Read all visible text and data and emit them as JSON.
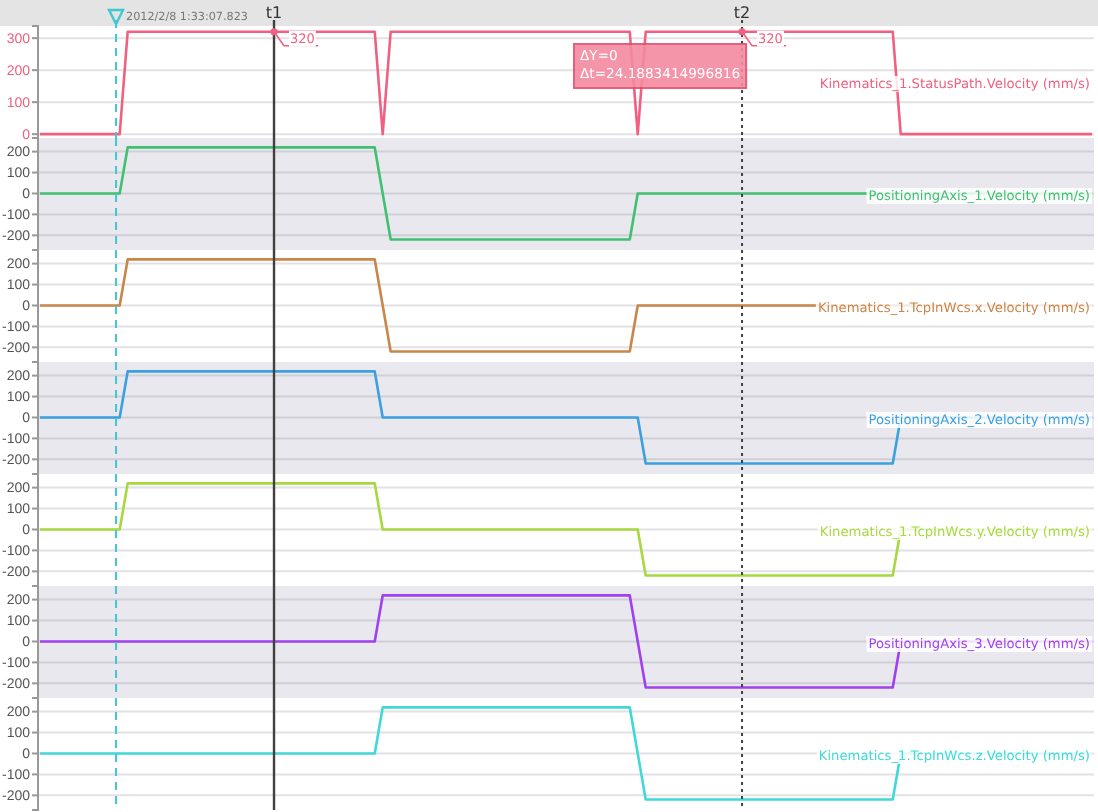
{
  "chart_data": [
    {
      "type": "line",
      "categories": [
        null,
        null,
        null,
        null,
        null,
        null,
        null,
        null,
        null,
        null,
        null,
        null,
        null,
        null,
        null,
        null,
        null,
        null,
        null,
        null,
        null,
        null,
        null,
        null,
        null,
        null,
        null,
        null,
        null,
        null,
        null,
        null,
        null,
        null,
        null,
        null,
        null,
        null,
        null,
        null,
        null,
        null,
        null,
        null,
        null,
        null,
        null,
        null,
        null,
        null,
        null,
        null,
        null,
        null,
        null,
        null,
        null,
        null,
        null,
        null,
        null,
        null,
        null,
        null,
        null,
        null,
        null,
        null,
        null,
        null,
        null,
        null,
        null,
        null,
        null,
        null,
        null,
        null,
        null,
        null,
        null,
        null,
        null,
        null,
        null,
        null,
        null,
        null,
        null,
        null,
        null,
        null,
        null,
        null,
        null,
        null,
        null,
        null,
        null,
        null,
        null,
        null,
        null,
        null,
        null,
        null,
        null,
        null,
        null,
        null,
        null,
        null,
        null,
        null,
        null,
        null,
        null,
        null,
        null,
        null,
        null,
        null,
        null,
        null,
        null,
        null,
        null,
        null,
        null,
        null,
        null,
        null,
        null
      ],
      "series": [
        {
          "name": "Kinematics_1.StatusPath.Velocity (mm/s)",
          "color": "#f06080",
          "values": [
            0,
            0,
            0,
            0,
            0,
            0,
            0,
            0,
            0,
            0,
            0,
            320,
            320,
            320,
            320,
            320,
            320,
            320,
            320,
            320,
            320,
            320,
            320,
            320,
            320,
            320,
            320,
            320,
            320,
            320,
            320,
            320,
            320,
            320,
            320,
            320,
            320,
            320,
            320,
            320,
            320,
            320,
            320,
            0,
            320,
            320,
            320,
            320,
            320,
            320,
            320,
            320,
            320,
            320,
            320,
            320,
            320,
            320,
            320,
            320,
            320,
            320,
            320,
            320,
            320,
            320,
            320,
            320,
            320,
            320,
            320,
            320,
            320,
            320,
            320,
            0,
            320,
            320,
            320,
            320,
            320,
            320,
            320,
            320,
            320,
            320,
            320,
            320,
            320,
            320,
            320,
            320,
            320,
            320,
            320,
            320,
            320,
            320,
            320,
            320,
            320,
            320,
            320,
            320,
            320,
            320,
            320,
            320,
            0,
            0,
            0,
            0,
            0,
            0,
            0,
            0,
            0,
            0,
            0,
            0,
            0,
            0,
            0,
            0,
            0,
            0,
            0,
            0,
            0,
            0,
            0,
            0,
            0
          ]
        }
      ],
      "ylim": [
        -12,
        338
      ],
      "yticks": [
        0,
        100,
        200,
        300
      ],
      "tick_labels": "y",
      "grid": "y",
      "annotations": [
        "2012/2/8 1:33:07.823",
        "ΔY=0",
        "Δt=24.1883414996816",
        "t1",
        "t2",
        {
          "text": "320",
          "y": 320
        },
        {
          "text": "320",
          "y": 320
        }
      ]
    },
    {
      "type": "line",
      "categories": [
        null,
        null,
        null,
        null,
        null,
        null,
        null,
        null,
        null,
        null,
        null,
        null,
        null,
        null,
        null,
        null,
        null,
        null,
        null,
        null,
        null,
        null,
        null,
        null,
        null,
        null,
        null,
        null,
        null,
        null,
        null,
        null,
        null,
        null,
        null,
        null,
        null,
        null,
        null,
        null,
        null,
        null,
        null,
        null,
        null,
        null,
        null,
        null,
        null,
        null,
        null,
        null,
        null,
        null,
        null,
        null,
        null,
        null,
        null,
        null,
        null,
        null,
        null,
        null,
        null,
        null,
        null,
        null,
        null,
        null,
        null,
        null,
        null,
        null,
        null,
        null,
        null,
        null,
        null,
        null,
        null,
        null,
        null,
        null,
        null,
        null,
        null,
        null,
        null,
        null,
        null,
        null,
        null,
        null,
        null,
        null,
        null,
        null,
        null,
        null,
        null,
        null,
        null,
        null,
        null,
        null,
        null,
        null,
        null,
        null,
        null,
        null,
        null,
        null,
        null,
        null,
        null,
        null,
        null,
        null,
        null,
        null,
        null,
        null,
        null,
        null,
        null,
        null,
        null,
        null,
        null,
        null,
        null
      ],
      "series": [
        {
          "name": "PositioningAxis_1.Velocity (mm/s)",
          "color": "#40c070",
          "values": [
            0,
            0,
            0,
            0,
            0,
            0,
            0,
            0,
            0,
            0,
            0,
            220,
            220,
            220,
            220,
            220,
            220,
            220,
            220,
            220,
            220,
            220,
            220,
            220,
            220,
            220,
            220,
            220,
            220,
            220,
            220,
            220,
            220,
            220,
            220,
            220,
            220,
            220,
            220,
            220,
            220,
            220,
            220,
            0,
            -220,
            -220,
            -220,
            -220,
            -220,
            -220,
            -220,
            -220,
            -220,
            -220,
            -220,
            -220,
            -220,
            -220,
            -220,
            -220,
            -220,
            -220,
            -220,
            -220,
            -220,
            -220,
            -220,
            -220,
            -220,
            -220,
            -220,
            -220,
            -220,
            -220,
            -220,
            0,
            0,
            0,
            0,
            0,
            0,
            0,
            0,
            0,
            0,
            0,
            0,
            0,
            0,
            0,
            0,
            0,
            0,
            0,
            0,
            0,
            0,
            0,
            0,
            0,
            0,
            0,
            0,
            0,
            0,
            0,
            0,
            0,
            0,
            0,
            0,
            0,
            0,
            0,
            0,
            0,
            0,
            0,
            0,
            0,
            0,
            0,
            0,
            0,
            0,
            0,
            0,
            0,
            0,
            0,
            0,
            0,
            0
          ]
        }
      ],
      "ylim": [
        -270,
        265
      ],
      "yticks": [
        -200,
        -100,
        0,
        100,
        200
      ],
      "tick_labels": "y",
      "grid": "y"
    },
    {
      "type": "line",
      "categories": [
        null,
        null,
        null,
        null,
        null,
        null,
        null,
        null,
        null,
        null,
        null,
        null,
        null,
        null,
        null,
        null,
        null,
        null,
        null,
        null,
        null,
        null,
        null,
        null,
        null,
        null,
        null,
        null,
        null,
        null,
        null,
        null,
        null,
        null,
        null,
        null,
        null,
        null,
        null,
        null,
        null,
        null,
        null,
        null,
        null,
        null,
        null,
        null,
        null,
        null,
        null,
        null,
        null,
        null,
        null,
        null,
        null,
        null,
        null,
        null,
        null,
        null,
        null,
        null,
        null,
        null,
        null,
        null,
        null,
        null,
        null,
        null,
        null,
        null,
        null,
        null,
        null,
        null,
        null,
        null,
        null,
        null,
        null,
        null,
        null,
        null,
        null,
        null,
        null,
        null,
        null,
        null,
        null,
        null,
        null,
        null,
        null,
        null,
        null,
        null,
        null,
        null,
        null,
        null,
        null,
        null,
        null,
        null,
        null,
        null,
        null,
        null,
        null,
        null,
        null,
        null,
        null,
        null,
        null,
        null,
        null,
        null,
        null,
        null,
        null,
        null,
        null,
        null,
        null,
        null,
        null,
        null,
        null
      ],
      "series": [
        {
          "name": "Kinematics_1.TcpInWcs.x.Velocity (mm/s)",
          "color": "#c8864a",
          "values": [
            0,
            0,
            0,
            0,
            0,
            0,
            0,
            0,
            0,
            0,
            0,
            220,
            220,
            220,
            220,
            220,
            220,
            220,
            220,
            220,
            220,
            220,
            220,
            220,
            220,
            220,
            220,
            220,
            220,
            220,
            220,
            220,
            220,
            220,
            220,
            220,
            220,
            220,
            220,
            220,
            220,
            220,
            220,
            0,
            -220,
            -220,
            -220,
            -220,
            -220,
            -220,
            -220,
            -220,
            -220,
            -220,
            -220,
            -220,
            -220,
            -220,
            -220,
            -220,
            -220,
            -220,
            -220,
            -220,
            -220,
            -220,
            -220,
            -220,
            -220,
            -220,
            -220,
            -220,
            -220,
            -220,
            -220,
            0,
            0,
            0,
            0,
            0,
            0,
            0,
            0,
            0,
            0,
            0,
            0,
            0,
            0,
            0,
            0,
            0,
            0,
            0,
            0,
            0,
            0,
            0,
            0,
            0,
            0,
            0,
            0,
            0,
            0,
            0,
            0,
            0,
            0,
            0,
            0,
            0,
            0,
            0,
            0,
            0,
            0,
            0,
            0,
            0,
            0,
            0,
            0,
            0,
            0,
            0,
            0,
            0,
            0,
            0,
            0,
            0,
            0
          ]
        }
      ],
      "ylim": [
        -270,
        265
      ],
      "yticks": [
        -200,
        -100,
        0,
        100,
        200
      ],
      "tick_labels": "y",
      "grid": "y"
    },
    {
      "type": "line",
      "categories": [
        null,
        null,
        null,
        null,
        null,
        null,
        null,
        null,
        null,
        null,
        null,
        null,
        null,
        null,
        null,
        null,
        null,
        null,
        null,
        null,
        null,
        null,
        null,
        null,
        null,
        null,
        null,
        null,
        null,
        null,
        null,
        null,
        null,
        null,
        null,
        null,
        null,
        null,
        null,
        null,
        null,
        null,
        null,
        null,
        null,
        null,
        null,
        null,
        null,
        null,
        null,
        null,
        null,
        null,
        null,
        null,
        null,
        null,
        null,
        null,
        null,
        null,
        null,
        null,
        null,
        null,
        null,
        null,
        null,
        null,
        null,
        null,
        null,
        null,
        null,
        null,
        null,
        null,
        null,
        null,
        null,
        null,
        null,
        null,
        null,
        null,
        null,
        null,
        null,
        null,
        null,
        null,
        null,
        null,
        null,
        null,
        null,
        null,
        null,
        null,
        null,
        null,
        null,
        null,
        null,
        null,
        null,
        null,
        null,
        null,
        null,
        null,
        null,
        null,
        null,
        null,
        null,
        null,
        null,
        null,
        null,
        null,
        null,
        null,
        null,
        null,
        null,
        null,
        null,
        null,
        null,
        null,
        null
      ],
      "series": [
        {
          "name": "PositioningAxis_2.Velocity (mm/s)",
          "color": "#3ba0e0",
          "values": [
            0,
            0,
            0,
            0,
            0,
            0,
            0,
            0,
            0,
            0,
            0,
            220,
            220,
            220,
            220,
            220,
            220,
            220,
            220,
            220,
            220,
            220,
            220,
            220,
            220,
            220,
            220,
            220,
            220,
            220,
            220,
            220,
            220,
            220,
            220,
            220,
            220,
            220,
            220,
            220,
            220,
            220,
            220,
            0,
            0,
            0,
            0,
            0,
            0,
            0,
            0,
            0,
            0,
            0,
            0,
            0,
            0,
            0,
            0,
            0,
            0,
            0,
            0,
            0,
            0,
            0,
            0,
            0,
            0,
            0,
            0,
            0,
            0,
            0,
            0,
            0,
            -220,
            -220,
            -220,
            -220,
            -220,
            -220,
            -220,
            -220,
            -220,
            -220,
            -220,
            -220,
            -220,
            -220,
            -220,
            -220,
            -220,
            -220,
            -220,
            -220,
            -220,
            -220,
            -220,
            -220,
            -220,
            -220,
            -220,
            -220,
            -220,
            -220,
            -220,
            -220,
            0,
            0,
            0,
            0,
            0,
            0,
            0,
            0,
            0,
            0,
            0,
            0,
            0,
            0,
            0,
            0,
            0,
            0,
            0,
            0,
            0,
            0,
            0,
            0,
            0
          ]
        }
      ],
      "ylim": [
        -270,
        265
      ],
      "yticks": [
        -200,
        -100,
        0,
        100,
        200
      ],
      "tick_labels": "y",
      "grid": "y"
    },
    {
      "type": "line",
      "categories": [
        null,
        null,
        null,
        null,
        null,
        null,
        null,
        null,
        null,
        null,
        null,
        null,
        null,
        null,
        null,
        null,
        null,
        null,
        null,
        null,
        null,
        null,
        null,
        null,
        null,
        null,
        null,
        null,
        null,
        null,
        null,
        null,
        null,
        null,
        null,
        null,
        null,
        null,
        null,
        null,
        null,
        null,
        null,
        null,
        null,
        null,
        null,
        null,
        null,
        null,
        null,
        null,
        null,
        null,
        null,
        null,
        null,
        null,
        null,
        null,
        null,
        null,
        null,
        null,
        null,
        null,
        null,
        null,
        null,
        null,
        null,
        null,
        null,
        null,
        null,
        null,
        null,
        null,
        null,
        null,
        null,
        null,
        null,
        null,
        null,
        null,
        null,
        null,
        null,
        null,
        null,
        null,
        null,
        null,
        null,
        null,
        null,
        null,
        null,
        null,
        null,
        null,
        null,
        null,
        null,
        null,
        null,
        null,
        null,
        null,
        null,
        null,
        null,
        null,
        null,
        null,
        null,
        null,
        null,
        null,
        null,
        null,
        null,
        null,
        null,
        null,
        null,
        null,
        null,
        null,
        null,
        null,
        null
      ],
      "series": [
        {
          "name": "Kinematics_1.TcpInWcs.y.Velocity (mm/s)",
          "color": "#a8d840",
          "values": [
            0,
            0,
            0,
            0,
            0,
            0,
            0,
            0,
            0,
            0,
            0,
            220,
            220,
            220,
            220,
            220,
            220,
            220,
            220,
            220,
            220,
            220,
            220,
            220,
            220,
            220,
            220,
            220,
            220,
            220,
            220,
            220,
            220,
            220,
            220,
            220,
            220,
            220,
            220,
            220,
            220,
            220,
            220,
            0,
            0,
            0,
            0,
            0,
            0,
            0,
            0,
            0,
            0,
            0,
            0,
            0,
            0,
            0,
            0,
            0,
            0,
            0,
            0,
            0,
            0,
            0,
            0,
            0,
            0,
            0,
            0,
            0,
            0,
            0,
            0,
            0,
            -220,
            -220,
            -220,
            -220,
            -220,
            -220,
            -220,
            -220,
            -220,
            -220,
            -220,
            -220,
            -220,
            -220,
            -220,
            -220,
            -220,
            -220,
            -220,
            -220,
            -220,
            -220,
            -220,
            -220,
            -220,
            -220,
            -220,
            -220,
            -220,
            -220,
            -220,
            -220,
            0,
            0,
            0,
            0,
            0,
            0,
            0,
            0,
            0,
            0,
            0,
            0,
            0,
            0,
            0,
            0,
            0,
            0,
            0,
            0,
            0,
            0,
            0,
            0,
            0
          ]
        }
      ],
      "ylim": [
        -270,
        265
      ],
      "yticks": [
        -200,
        -100,
        0,
        100,
        200
      ],
      "tick_labels": "y",
      "grid": "y"
    },
    {
      "type": "line",
      "categories": [
        null,
        null,
        null,
        null,
        null,
        null,
        null,
        null,
        null,
        null,
        null,
        null,
        null,
        null,
        null,
        null,
        null,
        null,
        null,
        null,
        null,
        null,
        null,
        null,
        null,
        null,
        null,
        null,
        null,
        null,
        null,
        null,
        null,
        null,
        null,
        null,
        null,
        null,
        null,
        null,
        null,
        null,
        null,
        null,
        null,
        null,
        null,
        null,
        null,
        null,
        null,
        null,
        null,
        null,
        null,
        null,
        null,
        null,
        null,
        null,
        null,
        null,
        null,
        null,
        null,
        null,
        null,
        null,
        null,
        null,
        null,
        null,
        null,
        null,
        null,
        null,
        null,
        null,
        null,
        null,
        null,
        null,
        null,
        null,
        null,
        null,
        null,
        null,
        null,
        null,
        null,
        null,
        null,
        null,
        null,
        null,
        null,
        null,
        null,
        null,
        null,
        null,
        null,
        null,
        null,
        null,
        null,
        null,
        null,
        null,
        null,
        null,
        null,
        null,
        null,
        null,
        null,
        null,
        null,
        null,
        null,
        null,
        null,
        null,
        null,
        null,
        null,
        null,
        null,
        null,
        null,
        null,
        null
      ],
      "series": [
        {
          "name": "PositioningAxis_3.Velocity (mm/s)",
          "color": "#a040f0",
          "values": [
            0,
            0,
            0,
            0,
            0,
            0,
            0,
            0,
            0,
            0,
            0,
            0,
            0,
            0,
            0,
            0,
            0,
            0,
            0,
            0,
            0,
            0,
            0,
            0,
            0,
            0,
            0,
            0,
            0,
            0,
            0,
            0,
            0,
            0,
            0,
            0,
            0,
            0,
            0,
            0,
            0,
            0,
            0,
            220,
            220,
            220,
            220,
            220,
            220,
            220,
            220,
            220,
            220,
            220,
            220,
            220,
            220,
            220,
            220,
            220,
            220,
            220,
            220,
            220,
            220,
            220,
            220,
            220,
            220,
            220,
            220,
            220,
            220,
            220,
            220,
            0,
            -220,
            -220,
            -220,
            -220,
            -220,
            -220,
            -220,
            -220,
            -220,
            -220,
            -220,
            -220,
            -220,
            -220,
            -220,
            -220,
            -220,
            -220,
            -220,
            -220,
            -220,
            -220,
            -220,
            -220,
            -220,
            -220,
            -220,
            -220,
            -220,
            -220,
            -220,
            -220,
            0,
            0,
            0,
            0,
            0,
            0,
            0,
            0,
            0,
            0,
            0,
            0,
            0,
            0,
            0,
            0,
            0,
            0,
            0,
            0,
            0,
            0,
            0,
            0,
            0
          ]
        }
      ],
      "ylim": [
        -270,
        265
      ],
      "yticks": [
        -200,
        -100,
        0,
        100,
        200
      ],
      "tick_labels": "y",
      "grid": "y"
    },
    {
      "type": "line",
      "categories": [
        null,
        null,
        null,
        null,
        null,
        null,
        null,
        null,
        null,
        null,
        null,
        null,
        null,
        null,
        null,
        null,
        null,
        null,
        null,
        null,
        null,
        null,
        null,
        null,
        null,
        null,
        null,
        null,
        null,
        null,
        null,
        null,
        null,
        null,
        null,
        null,
        null,
        null,
        null,
        null,
        null,
        null,
        null,
        null,
        null,
        null,
        null,
        null,
        null,
        null,
        null,
        null,
        null,
        null,
        null,
        null,
        null,
        null,
        null,
        null,
        null,
        null,
        null,
        null,
        null,
        null,
        null,
        null,
        null,
        null,
        null,
        null,
        null,
        null,
        null,
        null,
        null,
        null,
        null,
        null,
        null,
        null,
        null,
        null,
        null,
        null,
        null,
        null,
        null,
        null,
        null,
        null,
        null,
        null,
        null,
        null,
        null,
        null,
        null,
        null,
        null,
        null,
        null,
        null,
        null,
        null,
        null,
        null,
        null,
        null,
        null,
        null,
        null,
        null,
        null,
        null,
        null,
        null,
        null,
        null,
        null,
        null,
        null,
        null,
        null,
        null,
        null,
        null,
        null,
        null,
        null,
        null,
        null
      ],
      "series": [
        {
          "name": "Kinematics_1.TcpInWcs.z.Velocity (mm/s)",
          "color": "#40d8d8",
          "values": [
            0,
            0,
            0,
            0,
            0,
            0,
            0,
            0,
            0,
            0,
            0,
            0,
            0,
            0,
            0,
            0,
            0,
            0,
            0,
            0,
            0,
            0,
            0,
            0,
            0,
            0,
            0,
            0,
            0,
            0,
            0,
            0,
            0,
            0,
            0,
            0,
            0,
            0,
            0,
            0,
            0,
            0,
            0,
            220,
            220,
            220,
            220,
            220,
            220,
            220,
            220,
            220,
            220,
            220,
            220,
            220,
            220,
            220,
            220,
            220,
            220,
            220,
            220,
            220,
            220,
            220,
            220,
            220,
            220,
            220,
            220,
            220,
            220,
            220,
            220,
            0,
            -220,
            -220,
            -220,
            -220,
            -220,
            -220,
            -220,
            -220,
            -220,
            -220,
            -220,
            -220,
            -220,
            -220,
            -220,
            -220,
            -220,
            -220,
            -220,
            -220,
            -220,
            -220,
            -220,
            -220,
            -220,
            -220,
            -220,
            -220,
            -220,
            -220,
            -220,
            -220,
            0,
            0,
            0,
            0,
            0,
            0,
            0,
            0,
            0,
            0,
            0,
            0,
            0,
            0,
            0,
            0,
            0,
            0,
            0,
            0,
            0,
            0,
            0,
            0,
            0
          ]
        }
      ],
      "ylim": [
        -270,
        265
      ],
      "yticks": [
        -200,
        -100,
        0,
        100,
        200
      ],
      "tick_labels": "y",
      "grid": "y"
    }
  ]
}
